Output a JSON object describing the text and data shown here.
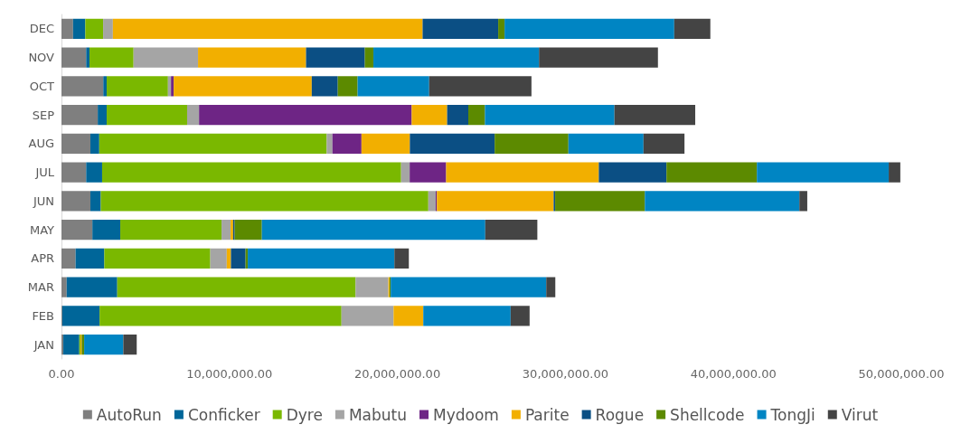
{
  "chart_data": {
    "type": "bar",
    "orientation": "horizontal",
    "stacked": true,
    "categories": [
      "DEC",
      "NOV",
      "OCT",
      "SEP",
      "AUG",
      "JUL",
      "JUN",
      "MAY",
      "APR",
      "MAR",
      "FEB",
      "JAN"
    ],
    "series": [
      {
        "name": "AutoRun",
        "color": "#7f7f7f",
        "values": [
          690000,
          1470000,
          2490000,
          2160000,
          1720000,
          1470000,
          1720000,
          1840000,
          840000,
          310000,
          50000,
          110000
        ]
      },
      {
        "name": "Conficker",
        "color": "#006699",
        "values": [
          730000,
          200000,
          200000,
          530000,
          530000,
          950000,
          620000,
          1660000,
          1710000,
          3010000,
          2220000,
          950000
        ]
      },
      {
        "name": "Dyre",
        "color": "#7ab800",
        "values": [
          1060000,
          2620000,
          3650000,
          4790000,
          13540000,
          17800000,
          19500000,
          6030000,
          6310000,
          14190000,
          14400000,
          70000
        ]
      },
      {
        "name": "Mabutu",
        "color": "#a5a5a5",
        "values": [
          580000,
          3840000,
          180000,
          710000,
          340000,
          510000,
          440000,
          540000,
          980000,
          1950000,
          3100000,
          0
        ]
      },
      {
        "name": "Mydoom",
        "color": "#6e2585",
        "values": [
          0,
          0,
          160000,
          12660000,
          1730000,
          2170000,
          70000,
          0,
          0,
          0,
          0,
          0
        ]
      },
      {
        "name": "Parite",
        "color": "#f2af00",
        "values": [
          18440000,
          6430000,
          8220000,
          2110000,
          2880000,
          9090000,
          6950000,
          150000,
          250000,
          70000,
          1770000,
          70000
        ]
      },
      {
        "name": "Rogue",
        "color": "#0b4f84",
        "values": [
          4500000,
          3500000,
          1550000,
          1260000,
          5050000,
          4030000,
          90000,
          90000,
          870000,
          0,
          0,
          0
        ]
      },
      {
        "name": "Shellcode",
        "color": "#5c8a00",
        "values": [
          380000,
          510000,
          1180000,
          990000,
          4390000,
          5380000,
          5340000,
          1620000,
          130000,
          70000,
          0,
          150000
        ]
      },
      {
        "name": "TongJi",
        "color": "#0085c3",
        "values": [
          10100000,
          9860000,
          4260000,
          7710000,
          4470000,
          7850000,
          9200000,
          13300000,
          8730000,
          9260000,
          5200000,
          2330000
        ]
      },
      {
        "name": "Virut",
        "color": "#444444",
        "values": [
          2150000,
          7080000,
          6090000,
          4810000,
          2440000,
          690000,
          470000,
          3100000,
          860000,
          540000,
          1130000,
          800000
        ]
      }
    ],
    "xlim": [
      0,
      50000000
    ],
    "xticks": [
      {
        "value": 0,
        "label": "0.00"
      },
      {
        "value": 10000000,
        "label": "10,000,000.00"
      },
      {
        "value": 20000000,
        "label": "20,000,000.00"
      },
      {
        "value": 30000000,
        "label": "30,000,000.00"
      },
      {
        "value": 40000000,
        "label": "40,000,000.00"
      },
      {
        "value": 50000000,
        "label": "50,000,000.00"
      }
    ],
    "grid": false,
    "legend": "bottom"
  }
}
